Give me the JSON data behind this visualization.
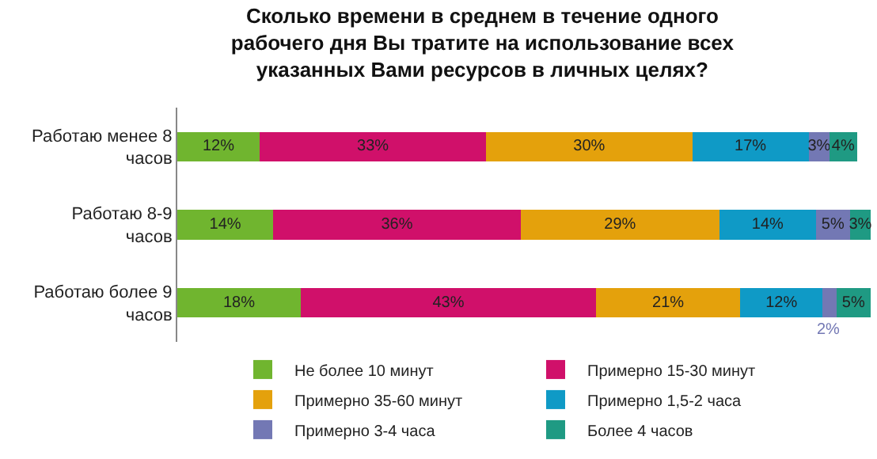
{
  "chart_data": {
    "type": "bar",
    "orientation": "horizontal",
    "stacked": true,
    "legend": "bottom",
    "title": "Сколько времени в среднем в течение одного рабочего дня Вы тратите на использование всех указанных Вами ресурсов в личных целях?",
    "categories": [
      "Работаю менее 8 часов",
      "Работаю 8-9 часов",
      "Работаю более 9 часов"
    ],
    "series": [
      {
        "name": "Не более 10 минут",
        "color": "#70b52f",
        "values": [
          12,
          14,
          18
        ],
        "value_labels": [
          "12%",
          "14%",
          "18%"
        ]
      },
      {
        "name": "Примерно 15-30 минут",
        "color": "#d0106a",
        "values": [
          33,
          36,
          43
        ],
        "value_labels": [
          "33%",
          "36%",
          "43%"
        ]
      },
      {
        "name": "Примерно 35-60 минут",
        "color": "#e4a10c",
        "values": [
          30,
          29,
          21
        ],
        "value_labels": [
          "30%",
          "29%",
          "21%"
        ]
      },
      {
        "name": "Примерно 1,5-2 часа",
        "color": "#0f9ac6",
        "values": [
          17,
          14,
          12
        ],
        "value_labels": [
          "17%",
          "14%",
          "12%"
        ]
      },
      {
        "name": "Примерно 3-4 часа",
        "color": "#7378b4",
        "values": [
          3,
          5,
          2
        ],
        "value_labels": [
          "3%",
          "5%",
          "2%"
        ]
      },
      {
        "name": "Более 4 часов",
        "color": "#1f9a83",
        "values": [
          4,
          3,
          5
        ],
        "value_labels": [
          "4%",
          "3%",
          "5%"
        ]
      }
    ]
  }
}
